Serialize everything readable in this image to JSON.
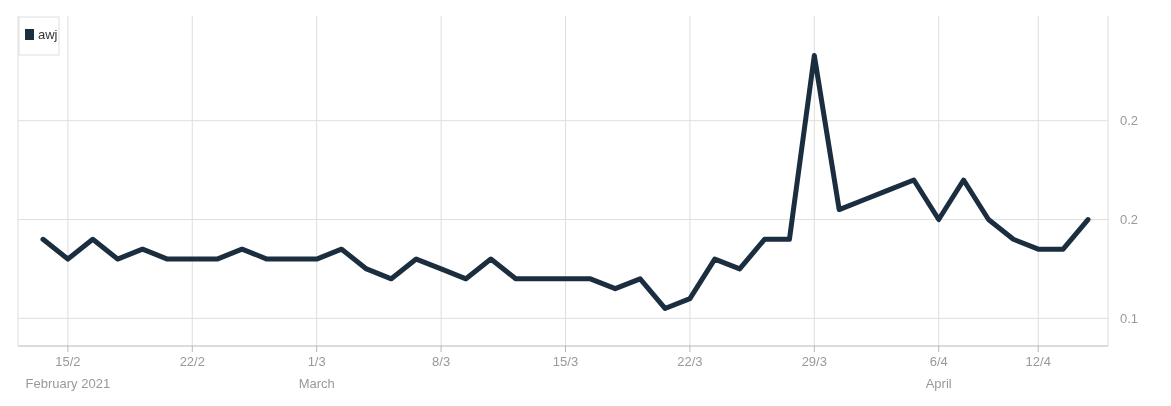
{
  "chart_data": {
    "type": "line",
    "categories": [
      null,
      "15/2",
      null,
      null,
      null,
      null,
      "22/2",
      null,
      null,
      null,
      null,
      "1/3",
      null,
      null,
      null,
      null,
      "8/3",
      null,
      null,
      null,
      null,
      "15/3",
      null,
      null,
      null,
      null,
      "22/3",
      null,
      null,
      null,
      null,
      "29/3",
      null,
      null,
      null,
      null,
      "6/4",
      null,
      null,
      null,
      "12/4",
      null,
      null
    ],
    "series": [
      {
        "name": "awj",
        "color": "#1b2e40",
        "values": [
          0.19,
          0.18,
          0.19,
          0.18,
          0.185,
          0.18,
          0.18,
          0.18,
          0.185,
          0.18,
          0.18,
          0.18,
          0.185,
          0.175,
          0.17,
          0.18,
          0.175,
          0.17,
          0.18,
          0.17,
          0.17,
          0.17,
          0.17,
          0.165,
          0.17,
          0.155,
          0.16,
          0.18,
          0.175,
          0.19,
          0.19,
          0.283,
          0.205,
          0.21,
          0.215,
          0.22,
          0.2,
          0.22,
          0.2,
          0.19,
          0.185,
          0.185,
          0.2
        ]
      }
    ],
    "ylim": [
      0.136,
      0.303
    ],
    "yticks": [
      {
        "value": 0.15,
        "label": "0.1"
      },
      {
        "value": 0.2,
        "label": "0.2"
      },
      {
        "value": 0.25,
        "label": "0.2"
      }
    ],
    "grid": true,
    "legend": "top left",
    "line_style": "solid",
    "annotations": [
      "February 2021",
      "March",
      "April"
    ]
  }
}
